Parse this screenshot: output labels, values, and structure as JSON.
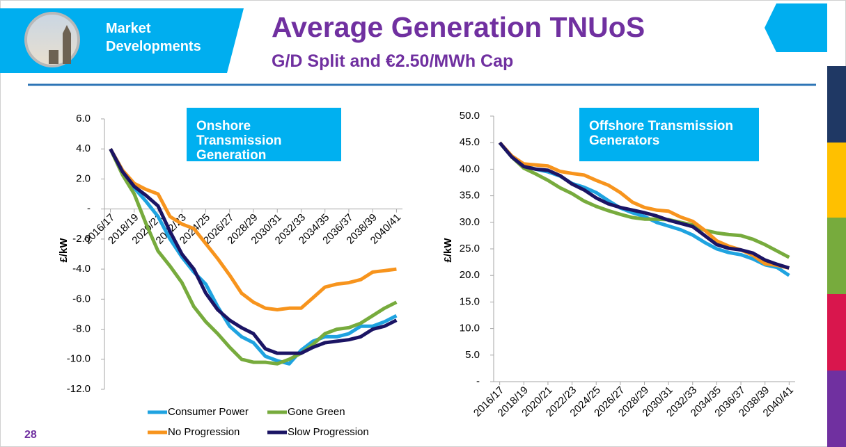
{
  "header": {
    "section": "Market Developments",
    "title": "Average Generation TNUoS",
    "subtitle": "G/D Split and €2.50/MWh Cap"
  },
  "page_number": "28",
  "chart_data": [
    {
      "type": "line",
      "title": "Onshore Transmission Generation",
      "y_label": "£/kW",
      "categories": [
        "2016/17",
        null,
        "2018/19",
        null,
        "2020/21",
        null,
        "2022/23",
        null,
        "2024/25",
        null,
        "2026/27",
        null,
        "2028/29",
        null,
        "2030/31",
        null,
        "2032/33",
        null,
        "2034/35",
        null,
        "2036/37",
        null,
        "2038/39",
        null,
        "2040/41"
      ],
      "ylim": [
        -12,
        6
      ],
      "yticks": [
        {
          "value": -12,
          "label": "-12.0"
        },
        {
          "value": -10,
          "label": "-10.0"
        },
        {
          "value": -8,
          "label": "-8.0"
        },
        {
          "value": -6,
          "label": "-6.0"
        },
        {
          "value": -4,
          "label": "-4.0"
        },
        {
          "value": -2,
          "label": "-2.0"
        },
        {
          "value": 0,
          "label": "-"
        },
        {
          "value": 2,
          "label": "2.0"
        },
        {
          "value": 4,
          "label": "4.0"
        },
        {
          "value": 6,
          "label": "6.0"
        }
      ],
      "legend": "bottom",
      "series": [
        {
          "name": "Consumer Power",
          "color": "#1fa3e0",
          "values": [
            4.0,
            2.6,
            1.4,
            0.5,
            -0.5,
            -2.0,
            -3.2,
            -4.2,
            -5.0,
            -6.5,
            -7.8,
            -8.5,
            -8.9,
            -9.8,
            -10.1,
            -10.3,
            -9.4,
            -8.8,
            -8.5,
            -8.5,
            -8.3,
            -7.8,
            -7.8,
            -7.5,
            -7.1
          ]
        },
        {
          "name": "Gone Green",
          "color": "#77ab3d",
          "values": [
            4.0,
            2.3,
            1.0,
            -1.0,
            -2.8,
            -3.8,
            -4.9,
            -6.5,
            -7.5,
            -8.3,
            -9.2,
            -10.0,
            -10.2,
            -10.2,
            -10.3,
            -10.0,
            -9.6,
            -9.0,
            -8.3,
            -8.0,
            -7.9,
            -7.6,
            -7.1,
            -6.6,
            -6.2
          ]
        },
        {
          "name": "No Progression",
          "color": "#f7941d",
          "values": [
            4.0,
            2.6,
            1.7,
            1.3,
            1.0,
            -0.5,
            -1.0,
            -1.3,
            -2.3,
            -3.3,
            -4.4,
            -5.6,
            -6.2,
            -6.6,
            -6.7,
            -6.6,
            -6.6,
            -5.9,
            -5.2,
            -5.0,
            -4.9,
            -4.7,
            -4.2,
            -4.1,
            -4.0
          ]
        },
        {
          "name": "Slow Progression",
          "color": "#1b1464",
          "values": [
            4.0,
            2.5,
            1.5,
            0.9,
            0.2,
            -1.5,
            -3.0,
            -4.0,
            -5.6,
            -6.7,
            -7.4,
            -7.9,
            -8.3,
            -9.3,
            -9.6,
            -9.6,
            -9.6,
            -9.2,
            -8.9,
            -8.8,
            -8.7,
            -8.5,
            -8.0,
            -7.8,
            -7.4
          ]
        }
      ]
    },
    {
      "type": "line",
      "title": "Offshore Transmission Generators",
      "y_label": "£/kW",
      "categories": [
        "2016/17",
        null,
        "2018/19",
        null,
        "2020/21",
        null,
        "2022/23",
        null,
        "2024/25",
        null,
        "2026/27",
        null,
        "2028/29",
        null,
        "2030/31",
        null,
        "2032/33",
        null,
        "2034/35",
        null,
        "2036/37",
        null,
        "2038/39",
        null,
        "2040/41"
      ],
      "ylim": [
        0,
        50
      ],
      "yticks": [
        {
          "value": 0,
          "label": "-"
        },
        {
          "value": 5,
          "label": "5.0"
        },
        {
          "value": 10,
          "label": "10.0"
        },
        {
          "value": 15,
          "label": "15.0"
        },
        {
          "value": 20,
          "label": "20.0"
        },
        {
          "value": 25,
          "label": "25.0"
        },
        {
          "value": 30,
          "label": "30.0"
        },
        {
          "value": 35,
          "label": "35.0"
        },
        {
          "value": 40,
          "label": "40.0"
        },
        {
          "value": 45,
          "label": "45.0"
        },
        {
          "value": 50,
          "label": "50.0"
        }
      ],
      "series": [
        {
          "color": "#1fa3e0",
          "values": [
            45,
            42.3,
            40.6,
            40.0,
            39.5,
            38.7,
            37.3,
            36.6,
            35.6,
            34.1,
            32.7,
            31.8,
            31.1,
            30.0,
            29.3,
            28.6,
            27.6,
            26.2,
            25.0,
            24.3,
            23.9,
            23.1,
            22.0,
            21.5,
            20.0
          ]
        },
        {
          "color": "#77ab3d",
          "values": [
            45,
            42.3,
            40.2,
            39.1,
            37.9,
            36.5,
            35.4,
            34.0,
            33.0,
            32.2,
            31.5,
            30.9,
            30.6,
            30.6,
            30.5,
            30.0,
            29.5,
            28.5,
            28.0,
            27.7,
            27.5,
            26.8,
            25.8,
            24.6,
            23.4
          ]
        },
        {
          "color": "#f7941d",
          "values": [
            45,
            42.5,
            41.0,
            40.8,
            40.6,
            39.6,
            39.2,
            38.9,
            37.9,
            37.0,
            35.6,
            33.8,
            32.8,
            32.3,
            32.1,
            31.0,
            30.2,
            28.5,
            26.5,
            25.5,
            24.8,
            23.8,
            22.2,
            21.9,
            21.4
          ]
        },
        {
          "color": "#1b1464",
          "values": [
            45,
            42.3,
            40.5,
            40.0,
            39.8,
            38.8,
            37.2,
            36.1,
            34.6,
            33.5,
            32.8,
            32.3,
            31.8,
            31.2,
            30.4,
            29.8,
            29.2,
            27.5,
            25.8,
            25.1,
            24.8,
            24.2,
            22.9,
            22.1,
            21.4
          ]
        }
      ]
    }
  ]
}
